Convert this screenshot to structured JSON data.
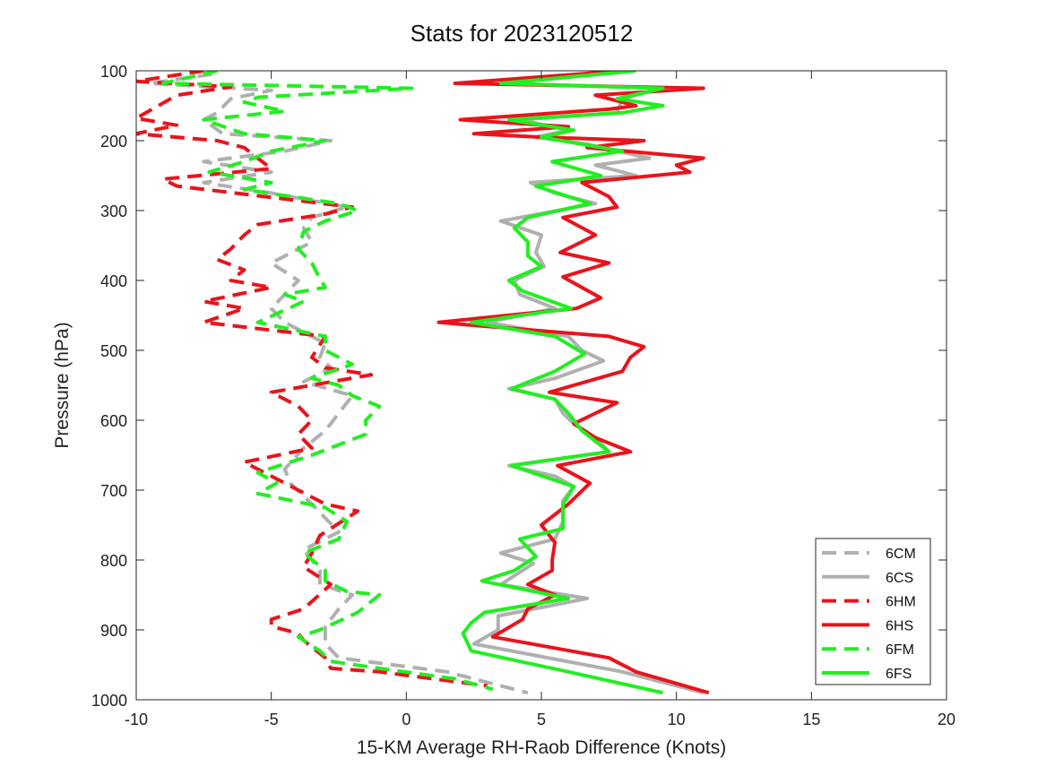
{
  "chart_data": {
    "type": "line",
    "title": "Stats for 2023120512",
    "xlabel": "15-KM Average RH-Raob Difference (Knots)",
    "ylabel": "Pressure (hPa)",
    "xlim": [
      -10,
      20
    ],
    "ylim": [
      100,
      1000
    ],
    "y_reversed": true,
    "xticks": [
      -10,
      -5,
      0,
      5,
      10,
      15,
      20
    ],
    "yticks": [
      100,
      200,
      300,
      400,
      500,
      600,
      700,
      800,
      900,
      1000
    ],
    "grid": false,
    "legend_position": "bottom-right",
    "series": [
      {
        "name": "6CM",
        "color": "#b0b0b0",
        "dash": true,
        "points": [
          [
            -7.2,
            105
          ],
          [
            -9.5,
            118
          ],
          [
            -5,
            128
          ],
          [
            -6.5,
            140
          ],
          [
            -7,
            160
          ],
          [
            -7.5,
            170
          ],
          [
            -6.8,
            190
          ],
          [
            -2.8,
            200
          ],
          [
            -4.5,
            215
          ],
          [
            -7.5,
            230
          ],
          [
            -5,
            245
          ],
          [
            -7.5,
            260
          ],
          [
            -5,
            275
          ],
          [
            -2.2,
            295
          ],
          [
            -3.5,
            310
          ],
          [
            -3.8,
            325
          ],
          [
            -3.5,
            345
          ],
          [
            -5,
            375
          ],
          [
            -4,
            400
          ],
          [
            -5,
            440
          ],
          [
            -4.5,
            460
          ],
          [
            -3,
            490
          ],
          [
            -3.2,
            510
          ],
          [
            -2.8,
            525
          ],
          [
            -3.8,
            545
          ],
          [
            -2,
            565
          ],
          [
            -2.5,
            590
          ],
          [
            -3,
            615
          ],
          [
            -3.8,
            640
          ],
          [
            -4.5,
            670
          ],
          [
            -4.3,
            690
          ],
          [
            -3.5,
            720
          ],
          [
            -2.5,
            760
          ],
          [
            -3.8,
            785
          ],
          [
            -3.2,
            815
          ],
          [
            -3.2,
            835
          ],
          [
            -2,
            850
          ],
          [
            -2.5,
            870
          ],
          [
            -3,
            895
          ],
          [
            -3,
            920
          ],
          [
            -2.5,
            940
          ],
          [
            1.5,
            960
          ],
          [
            4.5,
            990
          ]
        ]
      },
      {
        "name": "6CS",
        "color": "#b0b0b0",
        "dash": false,
        "points": [
          [
            8.5,
            100
          ],
          [
            3.6,
            118
          ],
          [
            9.5,
            125
          ],
          [
            8,
            140
          ],
          [
            7.8,
            160
          ],
          [
            4.2,
            170
          ],
          [
            6,
            185
          ],
          [
            4.8,
            195
          ],
          [
            6.7,
            205
          ],
          [
            9,
            225
          ],
          [
            7,
            235
          ],
          [
            8.5,
            250
          ],
          [
            4.6,
            260
          ],
          [
            5.5,
            275
          ],
          [
            7,
            290
          ],
          [
            3.5,
            315
          ],
          [
            5,
            335
          ],
          [
            4.8,
            360
          ],
          [
            5.1,
            380
          ],
          [
            4,
            400
          ],
          [
            4.2,
            420
          ],
          [
            5.5,
            440
          ],
          [
            3,
            460
          ],
          [
            6,
            480
          ],
          [
            6.5,
            500
          ],
          [
            7.3,
            515
          ],
          [
            5.5,
            540
          ],
          [
            3.8,
            555
          ],
          [
            5.5,
            570
          ],
          [
            5.8,
            590
          ],
          [
            6.2,
            605
          ],
          [
            7,
            625
          ],
          [
            7.5,
            645
          ],
          [
            3.8,
            665
          ],
          [
            5.5,
            680
          ],
          [
            6.2,
            695
          ],
          [
            5.8,
            715
          ],
          [
            5.8,
            745
          ],
          [
            5.5,
            770
          ],
          [
            3.5,
            790
          ],
          [
            4.7,
            805
          ],
          [
            3.5,
            835
          ],
          [
            6.7,
            855
          ],
          [
            3.4,
            880
          ],
          [
            3.4,
            900
          ],
          [
            2.5,
            920
          ],
          [
            8,
            960
          ],
          [
            11,
            990
          ]
        ]
      },
      {
        "name": "6HM",
        "color": "#e8141c",
        "dash": true,
        "points": [
          [
            -7.5,
            100
          ],
          [
            -10,
            115
          ],
          [
            -6.5,
            123
          ],
          [
            -8.5,
            135
          ],
          [
            -10,
            168
          ],
          [
            -8.5,
            178
          ],
          [
            -10,
            190
          ],
          [
            -7,
            200
          ],
          [
            -6,
            210
          ],
          [
            -5,
            240
          ],
          [
            -9,
            255
          ],
          [
            -8.5,
            265
          ],
          [
            -2,
            295
          ],
          [
            -3,
            305
          ],
          [
            -5.5,
            320
          ],
          [
            -6,
            335
          ],
          [
            -6.5,
            355
          ],
          [
            -7,
            370
          ],
          [
            -6,
            385
          ],
          [
            -6.5,
            400
          ],
          [
            -5,
            410
          ],
          [
            -7.5,
            430
          ],
          [
            -6,
            440
          ],
          [
            -7.5,
            460
          ],
          [
            -3,
            480
          ],
          [
            -3.5,
            510
          ],
          [
            -3,
            525
          ],
          [
            -1.3,
            535
          ],
          [
            -5,
            560
          ],
          [
            -4,
            580
          ],
          [
            -3.5,
            600
          ],
          [
            -4,
            620
          ],
          [
            -3.5,
            640
          ],
          [
            -6,
            660
          ],
          [
            -5,
            680
          ],
          [
            -4,
            700
          ],
          [
            -3,
            720
          ],
          [
            -1.8,
            730
          ],
          [
            -3.2,
            765
          ],
          [
            -3.5,
            790
          ],
          [
            -3.8,
            810
          ],
          [
            -2.8,
            835
          ],
          [
            -3.8,
            870
          ],
          [
            -5,
            885
          ],
          [
            -5,
            895
          ],
          [
            -4,
            905
          ],
          [
            -3.8,
            915
          ],
          [
            -3,
            940
          ],
          [
            -2.8,
            955
          ],
          [
            -1,
            960
          ],
          [
            3,
            980
          ]
        ]
      },
      {
        "name": "6HS",
        "color": "#e8141c",
        "dash": false,
        "points": [
          [
            8,
            100
          ],
          [
            1.8,
            118
          ],
          [
            11,
            125
          ],
          [
            7,
            135
          ],
          [
            8.5,
            150
          ],
          [
            7.5,
            155
          ],
          [
            2,
            170
          ],
          [
            6,
            180
          ],
          [
            2.5,
            190
          ],
          [
            5,
            195
          ],
          [
            8.8,
            200
          ],
          [
            6.7,
            210
          ],
          [
            11,
            225
          ],
          [
            10,
            235
          ],
          [
            10.5,
            245
          ],
          [
            6.5,
            260
          ],
          [
            7.5,
            280
          ],
          [
            7.8,
            295
          ],
          [
            5.8,
            310
          ],
          [
            7,
            335
          ],
          [
            5.7,
            360
          ],
          [
            7.5,
            375
          ],
          [
            5.8,
            395
          ],
          [
            7.2,
            425
          ],
          [
            6.3,
            440
          ],
          [
            1.2,
            460
          ],
          [
            7.5,
            480
          ],
          [
            8.8,
            495
          ],
          [
            8.3,
            510
          ],
          [
            8,
            530
          ],
          [
            5.3,
            560
          ],
          [
            7.8,
            575
          ],
          [
            6.2,
            605
          ],
          [
            7,
            625
          ],
          [
            8.3,
            645
          ],
          [
            5.6,
            665
          ],
          [
            6.8,
            690
          ],
          [
            6,
            720
          ],
          [
            5,
            750
          ],
          [
            5.5,
            775
          ],
          [
            5.4,
            800
          ],
          [
            5.4,
            815
          ],
          [
            4.5,
            835
          ],
          [
            5.5,
            850
          ],
          [
            4.5,
            870
          ],
          [
            4.3,
            885
          ],
          [
            3.2,
            910
          ],
          [
            7.5,
            940
          ],
          [
            8.5,
            960
          ],
          [
            11.2,
            990
          ]
        ]
      },
      {
        "name": "6FM",
        "color": "#22ee22",
        "dash": true,
        "points": [
          [
            -7,
            100
          ],
          [
            -9,
            118
          ],
          [
            0.2,
            125
          ],
          [
            -5.5,
            138
          ],
          [
            -6,
            145
          ],
          [
            -4.5,
            158
          ],
          [
            -7.5,
            170
          ],
          [
            -6,
            190
          ],
          [
            -3,
            200
          ],
          [
            -5,
            215
          ],
          [
            -6,
            230
          ],
          [
            -7.3,
            245
          ],
          [
            -5,
            260
          ],
          [
            -6,
            270
          ],
          [
            -2.5,
            290
          ],
          [
            -1.8,
            300
          ],
          [
            -3,
            315
          ],
          [
            -3.8,
            330
          ],
          [
            -4,
            355
          ],
          [
            -3.5,
            375
          ],
          [
            -3.3,
            390
          ],
          [
            -3,
            410
          ],
          [
            -4.5,
            420
          ],
          [
            -3.8,
            430
          ],
          [
            -5.5,
            460
          ],
          [
            -3,
            480
          ],
          [
            -3,
            500
          ],
          [
            -2,
            520
          ],
          [
            -3.5,
            540
          ],
          [
            -2.5,
            550
          ],
          [
            -2,
            565
          ],
          [
            -1,
            580
          ],
          [
            -1.5,
            600
          ],
          [
            -1.5,
            620
          ],
          [
            -3.5,
            650
          ],
          [
            -5.5,
            675
          ],
          [
            -4.8,
            690
          ],
          [
            -5.5,
            705
          ],
          [
            -3,
            725
          ],
          [
            -2.2,
            745
          ],
          [
            -2.5,
            770
          ],
          [
            -3.8,
            790
          ],
          [
            -3,
            815
          ],
          [
            -3,
            830
          ],
          [
            -2.2,
            845
          ],
          [
            -1,
            850
          ],
          [
            -1.8,
            875
          ],
          [
            -3.2,
            900
          ],
          [
            -4,
            910
          ],
          [
            -3.2,
            930
          ],
          [
            -2.8,
            945
          ],
          [
            -1,
            955
          ],
          [
            1.8,
            970
          ],
          [
            3.2,
            985
          ]
        ]
      },
      {
        "name": "6FS",
        "color": "#22ee22",
        "dash": false,
        "points": [
          [
            8.5,
            100
          ],
          [
            3.5,
            118
          ],
          [
            9.5,
            125
          ],
          [
            7.8,
            140
          ],
          [
            9.5,
            150
          ],
          [
            8,
            160
          ],
          [
            3.8,
            170
          ],
          [
            6.2,
            185
          ],
          [
            5,
            195
          ],
          [
            6.5,
            205
          ],
          [
            8,
            215
          ],
          [
            5.4,
            230
          ],
          [
            7.2,
            250
          ],
          [
            4.8,
            265
          ],
          [
            6.8,
            290
          ],
          [
            4.5,
            310
          ],
          [
            4,
            325
          ],
          [
            4.5,
            345
          ],
          [
            4.5,
            365
          ],
          [
            5,
            380
          ],
          [
            3.8,
            400
          ],
          [
            4.3,
            415
          ],
          [
            6.1,
            440
          ],
          [
            2.4,
            460
          ],
          [
            5.5,
            480
          ],
          [
            6.6,
            505
          ],
          [
            5.5,
            530
          ],
          [
            3.9,
            555
          ],
          [
            5.5,
            570
          ],
          [
            6,
            590
          ],
          [
            6.5,
            615
          ],
          [
            7.5,
            645
          ],
          [
            3.9,
            665
          ],
          [
            6.2,
            695
          ],
          [
            5.8,
            720
          ],
          [
            5.8,
            755
          ],
          [
            4.2,
            770
          ],
          [
            4.8,
            795
          ],
          [
            4,
            815
          ],
          [
            2.8,
            830
          ],
          [
            6,
            855
          ],
          [
            2.9,
            875
          ],
          [
            2.4,
            890
          ],
          [
            2.1,
            905
          ],
          [
            2.4,
            930
          ],
          [
            6,
            960
          ],
          [
            9.5,
            990
          ]
        ]
      }
    ]
  }
}
